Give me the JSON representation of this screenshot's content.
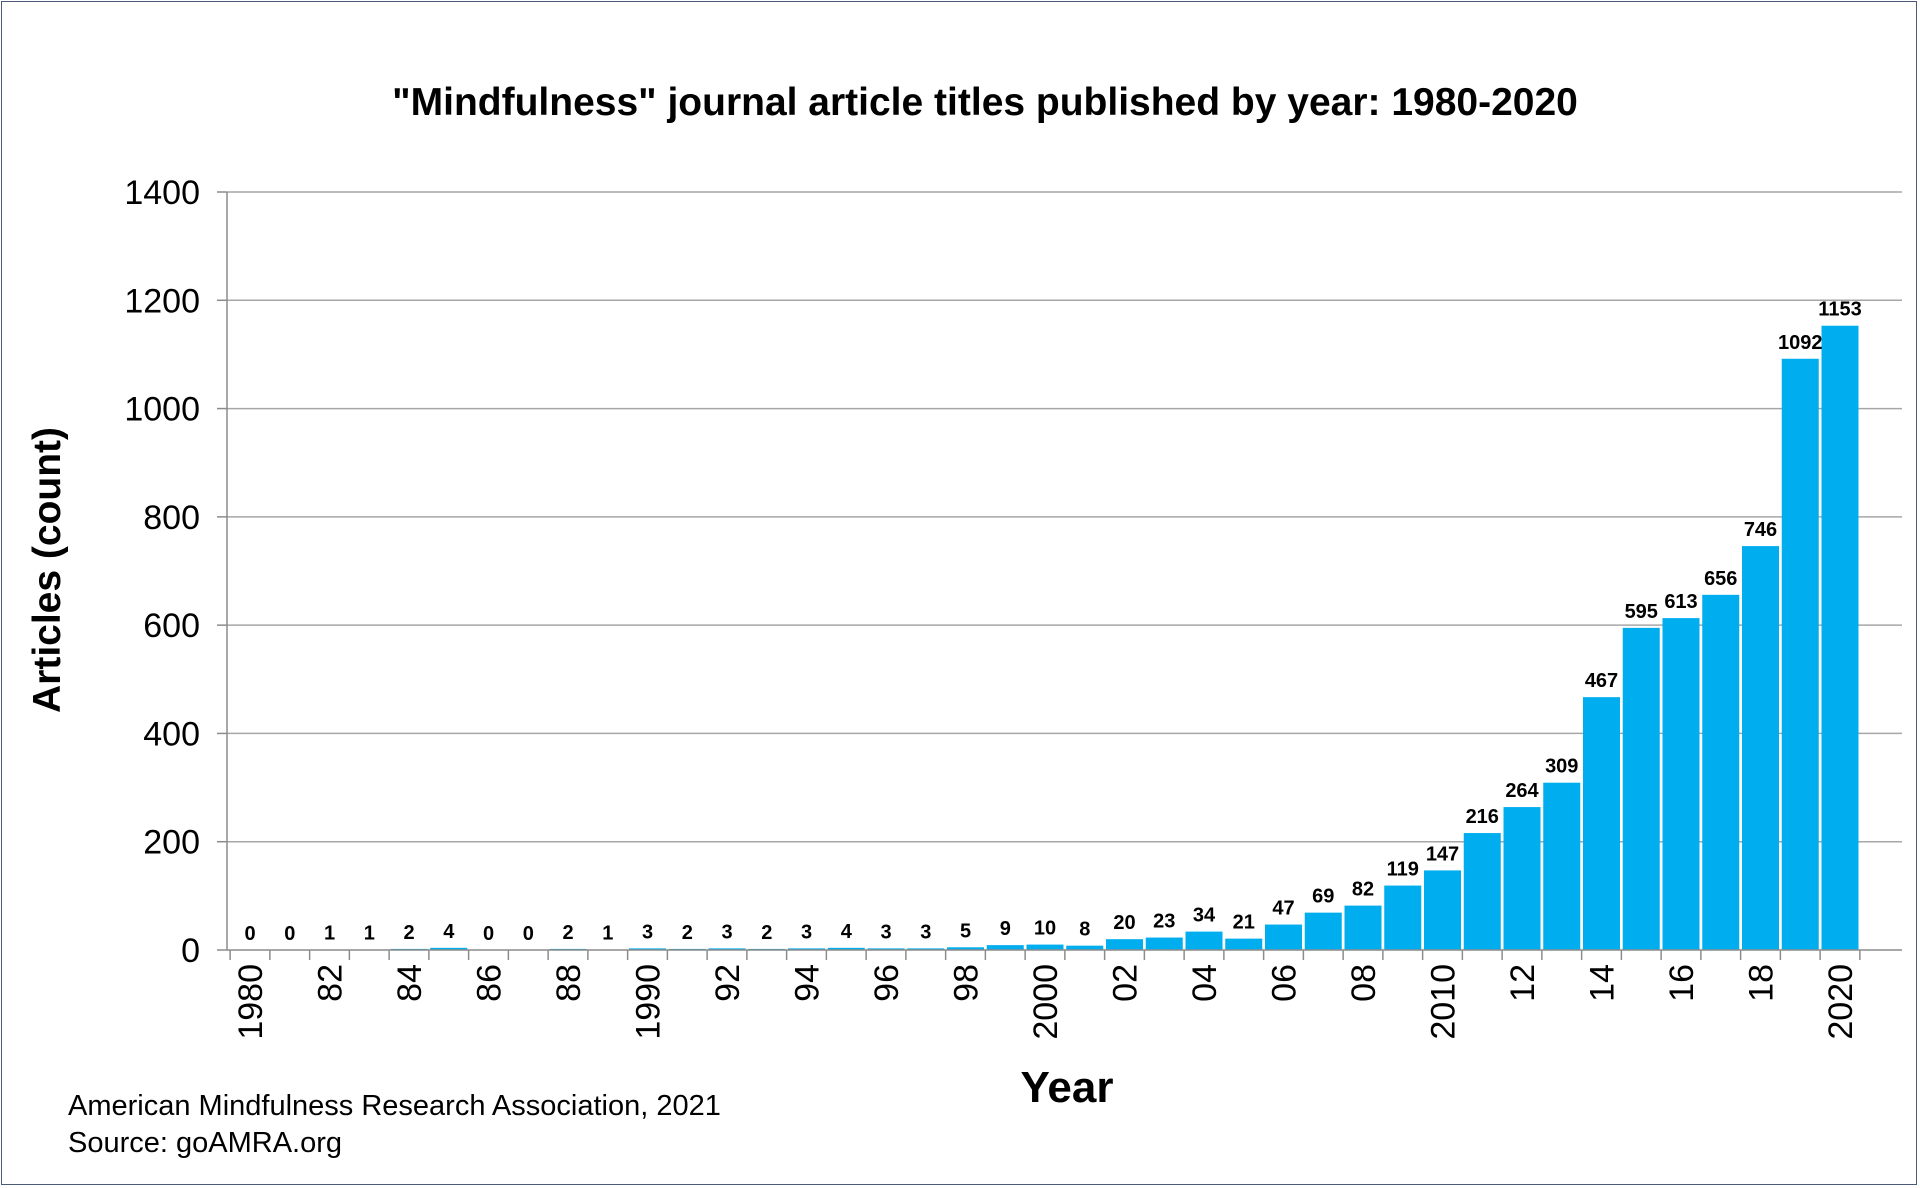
{
  "chart_data": {
    "type": "bar",
    "title": "\"Mindfulness\" journal article titles published by year: 1980-2020",
    "xlabel": "Year",
    "ylabel": "Articles (count)",
    "ylim": [
      0,
      1400
    ],
    "yticks": [
      "0",
      "200",
      "400",
      "600",
      "800",
      "1000",
      "1200",
      "1400"
    ],
    "grid": true,
    "color": "#00AEEF",
    "categories": [
      1980,
      1981,
      1982,
      1983,
      1984,
      1985,
      1986,
      1987,
      1988,
      1989,
      1990,
      1991,
      1992,
      1993,
      1994,
      1995,
      1996,
      1997,
      1998,
      1999,
      2000,
      2001,
      2002,
      2003,
      2004,
      2005,
      2006,
      2007,
      2008,
      2009,
      2010,
      2011,
      2012,
      2013,
      2014,
      2015,
      2016,
      2017,
      2018,
      2019,
      2020
    ],
    "values": [
      0,
      0,
      1,
      1,
      2,
      4,
      0,
      0,
      2,
      1,
      3,
      2,
      3,
      2,
      3,
      4,
      3,
      3,
      5,
      9,
      10,
      8,
      20,
      23,
      34,
      21,
      47,
      69,
      82,
      119,
      147,
      216,
      264,
      309,
      467,
      595,
      613,
      656,
      746,
      1092,
      1153
    ],
    "xtick_labels": [
      "1980",
      "82",
      "84",
      "86",
      "88",
      "1990",
      "92",
      "94",
      "96",
      "98",
      "2000",
      "02",
      "04",
      "06",
      "08",
      "2010",
      "12",
      "14",
      "16",
      "18",
      "2020"
    ]
  },
  "footer": {
    "line1": "American Mindfulness Research Association, 2021",
    "line2": "Source: goAMRA.org"
  }
}
